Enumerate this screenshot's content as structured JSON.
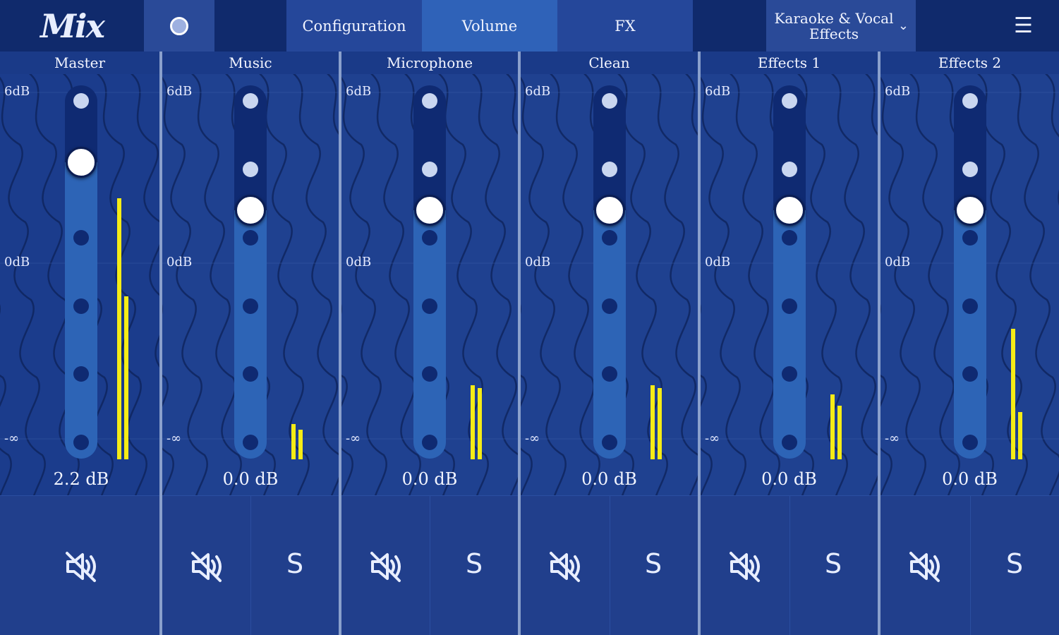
{
  "app": {
    "logo_text": "Mix"
  },
  "toolbar": {
    "tabs": [
      {
        "label": "Configuration"
      },
      {
        "label": "Volume"
      },
      {
        "label": "FX"
      }
    ],
    "preset": {
      "label": "Karaoke & Vocal Effects"
    }
  },
  "scale_labels": {
    "top": "6dB",
    "zero": "0dB",
    "bottom": "-∞"
  },
  "channels": [
    {
      "name": "Master",
      "db": "2.2 dB",
      "fader_level": 0.82,
      "meters": [
        0.88,
        0.55
      ],
      "has_solo": false
    },
    {
      "name": "Music",
      "db": "0.0 dB",
      "fader_level": 0.68,
      "meters": [
        0.12,
        0.1
      ],
      "has_solo": true,
      "solo_label": "S"
    },
    {
      "name": "Microphone",
      "db": "0.0 dB",
      "fader_level": 0.68,
      "meters": [
        0.25,
        0.24
      ],
      "has_solo": true,
      "solo_label": "S"
    },
    {
      "name": "Clean",
      "db": "0.0 dB",
      "fader_level": 0.68,
      "meters": [
        0.25,
        0.24
      ],
      "has_solo": true,
      "solo_label": "S"
    },
    {
      "name": "Effects 1",
      "db": "0.0 dB",
      "fader_level": 0.68,
      "meters": [
        0.22,
        0.18
      ],
      "has_solo": true,
      "solo_label": "S"
    },
    {
      "name": "Effects 2",
      "db": "0.0 dB",
      "fader_level": 0.68,
      "meters": [
        0.44,
        0.16
      ],
      "has_solo": true,
      "solo_label": "S"
    }
  ],
  "colors": {
    "meter": "#f5ec16",
    "track": "#0f2a72",
    "track_fill": "#2d64b6",
    "background": "#1f4190"
  }
}
